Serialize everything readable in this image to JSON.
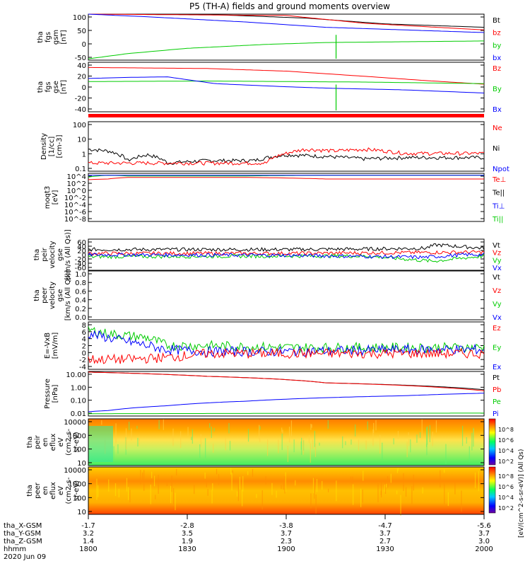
{
  "title": "P5 (TH-A) fields and ground moments overview",
  "colors": {
    "black": "#000000",
    "red": "#ff0000",
    "green": "#00cc00",
    "blue": "#0000ff"
  },
  "chart_data": [
    {
      "id": "fgs-gsm",
      "type": "line",
      "ylabel_lines": [
        "tha",
        "fgs",
        "gsm",
        "[nT]"
      ],
      "yticks": [
        100,
        50,
        0,
        -50
      ],
      "ylim": [
        -70,
        105
      ],
      "legend": [
        {
          "text": "Bt",
          "color": "black"
        },
        {
          "text": "bz",
          "color": "red"
        },
        {
          "text": "by",
          "color": "green"
        },
        {
          "text": "bx",
          "color": "blue"
        }
      ],
      "series": [
        {
          "name": "Bt",
          "color": "black",
          "x": [
            0,
            0.3,
            0.55,
            0.75,
            1
          ],
          "y": [
            105,
            104,
            90,
            68,
            55
          ]
        },
        {
          "name": "bz",
          "color": "red",
          "x": [
            0,
            0.5,
            0.7,
            1
          ],
          "y": [
            105,
            100,
            70,
            45
          ]
        },
        {
          "name": "by",
          "color": "green",
          "x": [
            0,
            0.1,
            0.25,
            0.45,
            0.6,
            0.8,
            1
          ],
          "y": [
            -65,
            -45,
            -25,
            -10,
            -3,
            0,
            3
          ]
        },
        {
          "name": "bx",
          "color": "blue",
          "x": [
            0,
            0.15,
            0.4,
            0.6,
            0.8,
            1
          ],
          "y": [
            105,
            95,
            75,
            55,
            45,
            35
          ]
        }
      ]
    },
    {
      "id": "fgs-gse",
      "type": "line",
      "ylabel_lines": [
        "tha",
        "fgs",
        "gse",
        "[nT]"
      ],
      "yticks": [
        40,
        20,
        0,
        -20,
        -40
      ],
      "ylim": [
        -50,
        45
      ],
      "legend": [
        {
          "text": "Bz",
          "color": "red"
        },
        {
          "text": "By",
          "color": "green"
        },
        {
          "text": "Bx",
          "color": "blue"
        }
      ],
      "series": [
        {
          "name": "Bz",
          "color": "red",
          "x": [
            0,
            0.3,
            0.5,
            0.7,
            0.85,
            1
          ],
          "y": [
            35,
            33,
            28,
            18,
            10,
            3
          ]
        },
        {
          "name": "By",
          "color": "green",
          "x": [
            0,
            0.3,
            0.5,
            0.7,
            1
          ],
          "y": [
            8,
            9,
            8,
            7,
            4
          ]
        },
        {
          "name": "Bx",
          "color": "blue",
          "x": [
            0,
            0.1,
            0.2,
            0.32,
            0.5,
            0.62,
            0.8,
            1
          ],
          "y": [
            14,
            16,
            17,
            4,
            -2,
            -5,
            -8,
            -14
          ]
        }
      ]
    },
    {
      "id": "density",
      "type": "line",
      "log": true,
      "ylabel_lines": [
        "Density",
        "[1/cc]",
        "[cm-3]"
      ],
      "yticks": [
        "100",
        "10",
        "1",
        "0.1"
      ],
      "ylim": [
        0.05,
        200
      ],
      "legend": [
        {
          "text": "Ne",
          "color": "red"
        },
        {
          "text": "Ni",
          "color": "black"
        },
        {
          "text": "Npot",
          "color": "blue"
        }
      ],
      "series": [
        {
          "name": "Ni",
          "color": "black",
          "x": [
            0,
            0.05,
            0.1,
            0.15,
            0.2,
            0.3,
            0.42,
            0.5,
            0.6,
            0.7,
            0.8,
            1
          ],
          "y": [
            2,
            1.5,
            0.3,
            0.8,
            0.2,
            0.3,
            0.3,
            0.8,
            0.6,
            0.4,
            0.5,
            0.5
          ]
        },
        {
          "name": "Ne",
          "color": "red",
          "x": [
            0,
            0.1,
            0.3,
            0.45,
            0.5,
            0.55,
            0.62,
            0.7,
            0.8,
            1
          ],
          "y": [
            0.2,
            0.2,
            0.2,
            0.2,
            1,
            2,
            1.5,
            2,
            1,
            1
          ]
        }
      ]
    },
    {
      "id": "temperature",
      "type": "line",
      "log": true,
      "ylabel_lines": [
        "moqt3",
        "[eV]"
      ],
      "yticks": [
        "10^4",
        "10^2",
        "10^0",
        "10^-2",
        "10^-4",
        "10^-6",
        "10^-8"
      ],
      "ylim": [
        1e-09,
        10000.0
      ],
      "legend": [
        {
          "text": "Te⊥",
          "color": "red"
        },
        {
          "text": "Te||",
          "color": "black"
        },
        {
          "text": "Ti⊥",
          "color": "blue"
        },
        {
          "text": "Ti||",
          "color": "green"
        }
      ],
      "series": [
        {
          "name": "Ti||",
          "color": "green",
          "x": [
            0,
            0.05,
            0.1,
            0.4,
            0.6,
            1
          ],
          "y": [
            1000,
            3000,
            2000,
            2000,
            3000,
            3000
          ]
        },
        {
          "name": "Te⊥",
          "color": "red",
          "x": [
            0,
            0.05,
            0.1,
            0.4,
            0.6,
            1
          ],
          "y": [
            200,
            300,
            800,
            800,
            300,
            300
          ]
        },
        {
          "name": "Ti⊥",
          "color": "blue",
          "x": [
            0,
            1
          ],
          "y": [
            3000,
            3000
          ]
        }
      ]
    },
    {
      "id": "peir-velocity",
      "type": "line",
      "ylabel_lines": [
        "tha",
        "peir",
        "velocity",
        "gse",
        "[km/s (All Qs)]"
      ],
      "yticks": [
        60,
        40,
        20,
        0,
        -20,
        -40,
        -60
      ],
      "ylim": [
        -60,
        60
      ],
      "legend": [
        {
          "text": "Vt",
          "color": "black"
        },
        {
          "text": "Vz",
          "color": "red"
        },
        {
          "text": "Vy",
          "color": "green"
        },
        {
          "text": "Vx",
          "color": "blue"
        }
      ],
      "series": [
        {
          "name": "Vt",
          "color": "black",
          "x": [
            0,
            0.5,
            0.7,
            0.85,
            0.88,
            1
          ],
          "y": [
            20,
            20,
            22,
            25,
            38,
            25
          ]
        },
        {
          "name": "Vz",
          "color": "red",
          "x": [
            0,
            0.5,
            0.8,
            1
          ],
          "y": [
            5,
            5,
            8,
            10
          ]
        },
        {
          "name": "Vy",
          "color": "green",
          "x": [
            0,
            0.5,
            0.7,
            0.87,
            1
          ],
          "y": [
            -8,
            -5,
            -5,
            -25,
            -5
          ]
        },
        {
          "name": "Vx",
          "color": "blue",
          "x": [
            0,
            0.5,
            0.85,
            0.95,
            1
          ],
          "y": [
            0,
            -2,
            -10,
            0,
            0
          ]
        }
      ]
    },
    {
      "id": "peer-velocity",
      "type": "line",
      "ylabel_lines": [
        "tha",
        "peer",
        "velocity",
        "gse",
        "[km/s (All Qs)]"
      ],
      "yticks": [
        "1.0",
        "0.8",
        "0.6",
        "0.4",
        "0.2",
        "0.0"
      ],
      "ylim": [
        0,
        1
      ],
      "legend": [
        {
          "text": "Vt",
          "color": "black"
        },
        {
          "text": "Vz",
          "color": "red"
        },
        {
          "text": "Vy",
          "color": "green"
        },
        {
          "text": "Vx",
          "color": "blue"
        }
      ],
      "series": []
    },
    {
      "id": "efield",
      "type": "line",
      "ylabel_lines": [
        "E=-VxB",
        "[mV/m]"
      ],
      "yticks": [
        8,
        6,
        4,
        2,
        0,
        -2,
        -4
      ],
      "ylim": [
        -4,
        8
      ],
      "legend": [
        {
          "text": "Ez",
          "color": "red"
        },
        {
          "text": "Ey",
          "color": "green"
        },
        {
          "text": "Ex",
          "color": "blue"
        }
      ],
      "series": [
        {
          "name": "Ey",
          "color": "green",
          "x": [
            0,
            0.05,
            0.15,
            0.2,
            0.3,
            0.5,
            1
          ],
          "y": [
            6,
            5,
            4,
            2,
            2,
            1.5,
            1.5
          ]
        },
        {
          "name": "Ex",
          "color": "blue",
          "x": [
            0,
            0.05,
            0.1,
            0.2,
            0.3,
            0.5,
            0.85,
            1
          ],
          "y": [
            5,
            4,
            3,
            1,
            0.5,
            0.5,
            1,
            1
          ]
        },
        {
          "name": "Ez",
          "color": "red",
          "x": [
            0,
            0.1,
            0.2,
            0.3,
            0.5,
            1
          ],
          "y": [
            -1.5,
            -1.5,
            -1,
            0,
            0,
            0
          ]
        }
      ]
    },
    {
      "id": "pressure",
      "type": "line",
      "log": true,
      "ylabel_lines": [
        "Pressure",
        "[nPa]"
      ],
      "yticks": [
        "10.00",
        "1.00",
        "0.10",
        "0.01"
      ],
      "ylim": [
        0.005,
        40
      ],
      "legend": [
        {
          "text": "Pt",
          "color": "black"
        },
        {
          "text": "Pb",
          "color": "red"
        },
        {
          "text": "Pe",
          "color": "green"
        },
        {
          "text": "Pi",
          "color": "blue"
        }
      ],
      "series": [
        {
          "name": "Pt",
          "color": "black",
          "x": [
            0,
            0.3,
            0.6,
            1
          ],
          "y": [
            35,
            15,
            4,
            1
          ]
        },
        {
          "name": "Pb",
          "color": "red",
          "x": [
            0,
            0.3,
            0.6,
            0.9,
            1
          ],
          "y": [
            35,
            15,
            4,
            1.5,
            0.8
          ]
        },
        {
          "name": "Pi",
          "color": "blue",
          "x": [
            0,
            0.05,
            0.2,
            0.4,
            0.6,
            0.8,
            1
          ],
          "y": [
            0.012,
            0.015,
            0.04,
            0.1,
            0.2,
            0.3,
            0.5
          ]
        },
        {
          "name": "Pe",
          "color": "green",
          "x": [
            0,
            1
          ],
          "y": [
            0.008,
            0.009
          ]
        }
      ]
    },
    {
      "id": "peir-spec",
      "type": "heatmap",
      "ylabel_lines": [
        "tha",
        "peir",
        "en",
        "eflux",
        "eV",
        "(cm2-s-",
        "sr-eV)"
      ],
      "yticks": [
        "10000",
        "1000",
        "100",
        "10"
      ],
      "colorbar_ticks": [
        "10^8",
        "10^6",
        "10^4",
        "10^2"
      ]
    },
    {
      "id": "peer-spec",
      "type": "heatmap",
      "ylabel_lines": [
        "tha",
        "peer",
        "en",
        "eflux",
        "eV",
        "(cm2-s-",
        "sr-eV)"
      ],
      "yticks": [
        "10000",
        "1000",
        "100",
        "10"
      ],
      "colorbar_ticks": [
        "10^8",
        "10^6",
        "10^4",
        "10^2"
      ]
    }
  ],
  "colorbar_label": "[eV/(cm^2-s-sr-eV)] (All Qs)",
  "xaxis": {
    "row_labels": [
      "tha_X-GSM",
      "tha_Y-GSM",
      "tha_Z-GSM",
      "hhmm",
      "2020 Jun 09"
    ],
    "columns": [
      [
        "-1.7",
        "3.2",
        "1.4",
        "1800"
      ],
      [
        "-2.8",
        "3.5",
        "1.9",
        "1830"
      ],
      [
        "-3.8",
        "3.7",
        "2.3",
        "1900"
      ],
      [
        "-4.7",
        "3.7",
        "2.7",
        "1930"
      ],
      [
        "-5.6",
        "3.7",
        "3.0",
        "2000"
      ]
    ]
  }
}
